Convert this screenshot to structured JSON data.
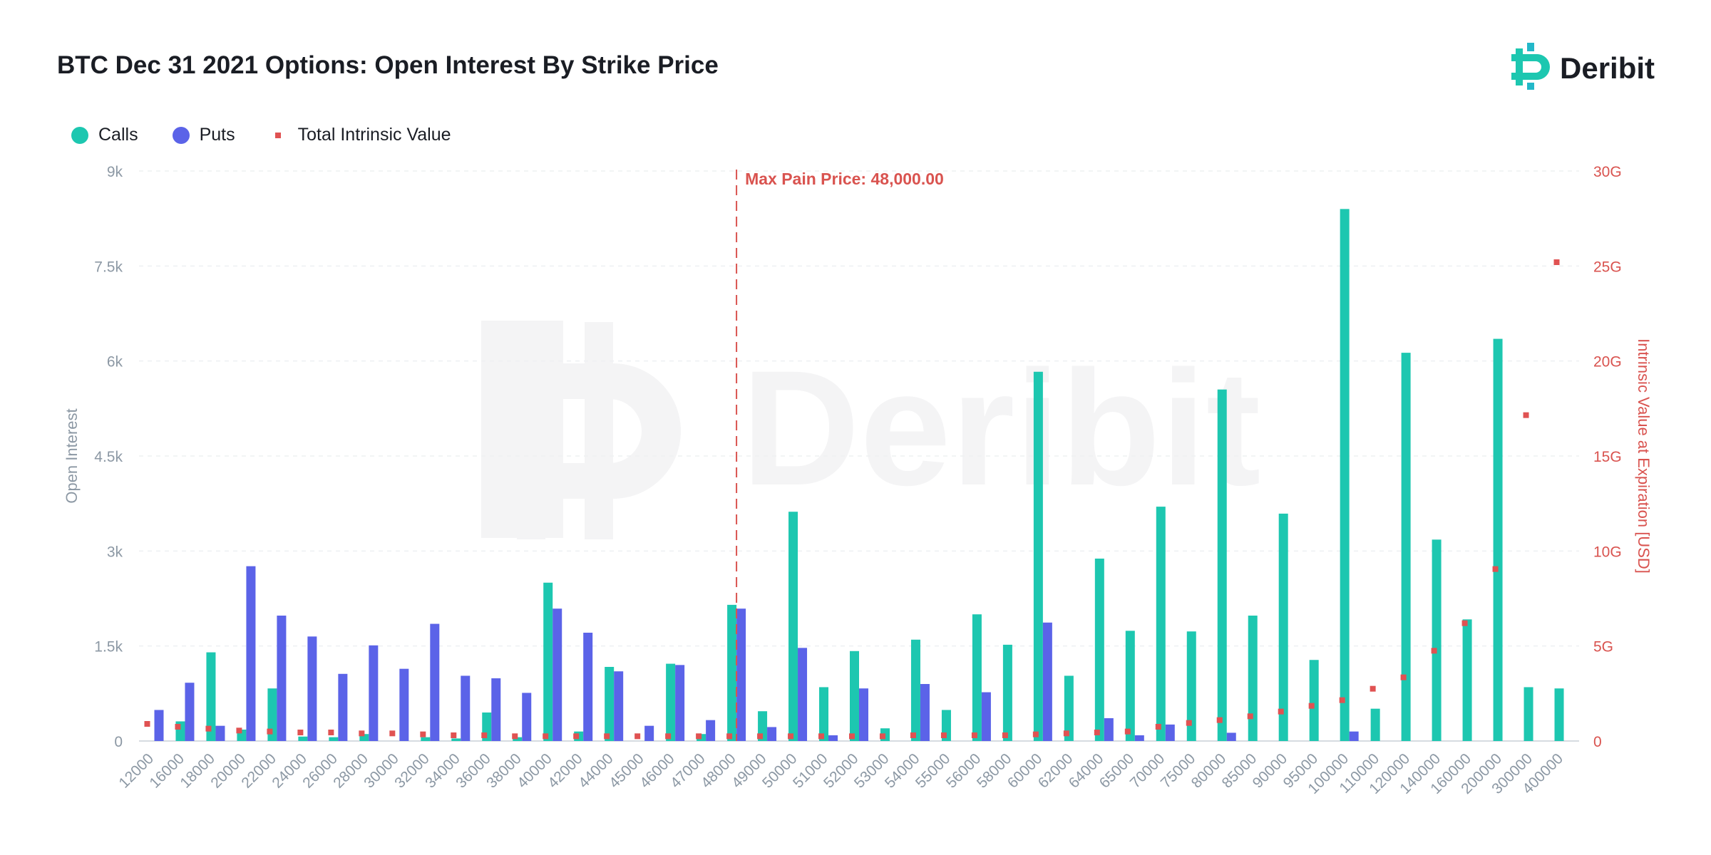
{
  "brand": {
    "name": "Deribit",
    "accent": "#1dc7b0"
  },
  "colors": {
    "calls": "#1dc7b0",
    "puts": "#5b63e8",
    "intrinsic": "#e05252",
    "maxpain": "#d9534f"
  },
  "chart_data": {
    "type": "bar",
    "title": "BTC Dec 31 2021 Options: Open Interest By Strike Price",
    "ylabel": "Open Interest",
    "y2label": "Intrinsic Value at Expiration [USD]",
    "ylim": [
      0,
      9000
    ],
    "y2lim": [
      0,
      30000000000
    ],
    "y_ticks": [
      "0",
      "1.5k",
      "3k",
      "4.5k",
      "6k",
      "7.5k",
      "9k"
    ],
    "y2_ticks": [
      "0",
      "5G",
      "10G",
      "15G",
      "20G",
      "25G",
      "30G"
    ],
    "grid": true,
    "legend": "top-left",
    "annotation": {
      "text": "Max Pain Price: 48,000.00",
      "category": "48000"
    },
    "categories": [
      "12000",
      "16000",
      "18000",
      "20000",
      "22000",
      "24000",
      "26000",
      "28000",
      "30000",
      "32000",
      "34000",
      "36000",
      "38000",
      "40000",
      "42000",
      "44000",
      "45000",
      "46000",
      "47000",
      "48000",
      "49000",
      "50000",
      "51000",
      "52000",
      "53000",
      "54000",
      "55000",
      "56000",
      "58000",
      "60000",
      "62000",
      "64000",
      "65000",
      "70000",
      "75000",
      "80000",
      "85000",
      "90000",
      "95000",
      "100000",
      "110000",
      "120000",
      "140000",
      "160000",
      "200000",
      "300000",
      "400000"
    ],
    "series": [
      {
        "name": "Calls",
        "type": "bar",
        "values": [
          0,
          310,
          1400,
          180,
          830,
          70,
          60,
          110,
          0,
          60,
          40,
          450,
          60,
          2500,
          150,
          1170,
          0,
          1220,
          110,
          2150,
          470,
          3620,
          850,
          1420,
          200,
          1600,
          490,
          2000,
          1520,
          5830,
          1030,
          2880,
          1740,
          3700,
          1730,
          5550,
          1980,
          3590,
          1280,
          8400,
          510,
          6130,
          3180,
          1920,
          6350,
          850,
          830
        ]
      },
      {
        "name": "Puts",
        "type": "bar",
        "values": [
          490,
          920,
          240,
          2760,
          1980,
          1650,
          1060,
          1510,
          1140,
          1850,
          1030,
          990,
          760,
          2090,
          1710,
          1100,
          240,
          1200,
          330,
          2090,
          220,
          1470,
          90,
          830,
          0,
          900,
          0,
          770,
          0,
          1870,
          0,
          360,
          90,
          260,
          0,
          130,
          0,
          0,
          0,
          150,
          0,
          0,
          0,
          0,
          0,
          0,
          0
        ]
      },
      {
        "name": "Total Intrinsic Value",
        "type": "scatter",
        "values": [
          900000000,
          750000000,
          650000000,
          550000000,
          500000000,
          450000000,
          450000000,
          400000000,
          400000000,
          350000000,
          300000000,
          300000000,
          250000000,
          250000000,
          250000000,
          250000000,
          250000000,
          250000000,
          250000000,
          250000000,
          250000000,
          250000000,
          250000000,
          250000000,
          250000000,
          300000000,
          300000000,
          300000000,
          300000000,
          350000000,
          400000000,
          450000000,
          500000000,
          750000000,
          950000000,
          1100000000,
          1300000000,
          1550000000,
          1850000000,
          2150000000,
          2750000000,
          3350000000,
          4750000000,
          6200000000,
          9050000000,
          17150000000,
          25200000000
        ]
      }
    ]
  }
}
